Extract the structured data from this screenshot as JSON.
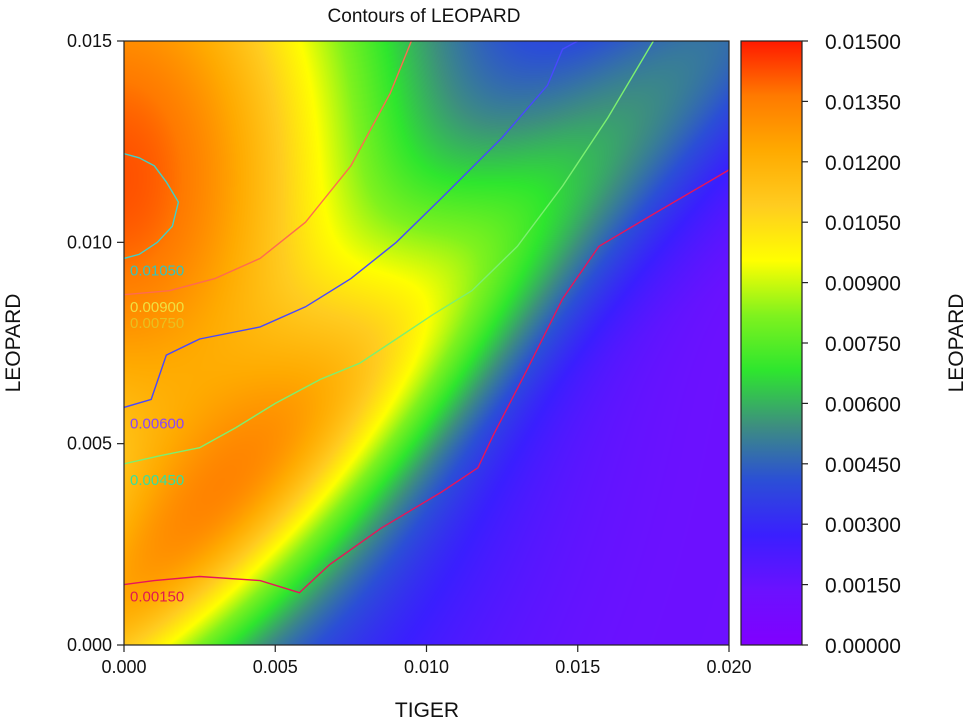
{
  "chart_data": {
    "type": "heatmap",
    "title": "Contours of LEOPARD",
    "xlabel": "TIGER",
    "ylabel": "LEOPARD",
    "colorbar_label": "LEOPARD",
    "xlim": [
      0,
      0.02
    ],
    "ylim": [
      0,
      0.015
    ],
    "x_ticks": [
      "0.000",
      "0.005",
      "0.010",
      "0.015",
      "0.020"
    ],
    "y_ticks": [
      "0.000",
      "0.005",
      "0.010",
      "0.015"
    ],
    "x_tick_values": [
      0,
      0.005,
      0.01,
      0.015,
      0.02
    ],
    "y_tick_values": [
      0,
      0.005,
      0.01,
      0.015
    ],
    "colorbar_range": [
      0,
      0.015
    ],
    "colorbar_ticks": [
      "0.00000",
      "0.00150",
      "0.00300",
      "0.00450",
      "0.00600",
      "0.00750",
      "0.00900",
      "0.01050",
      "0.01200",
      "0.01350",
      "0.01500"
    ],
    "colorbar_tick_values": [
      0,
      0.0015,
      0.003,
      0.0045,
      0.006,
      0.0075,
      0.009,
      0.0105,
      0.012,
      0.0135,
      0.015
    ],
    "colormap": [
      "#8000ff",
      "#6b11ff",
      "#3a1fff",
      "#2b4fd6",
      "#3d8f7f",
      "#2ee62e",
      "#7ff21e",
      "#ffff00",
      "#ffcc20",
      "#ffaa00",
      "#ff7a00",
      "#ff1a00"
    ],
    "grid": false,
    "contours": [
      {
        "level": "0.01050",
        "color": "#40d0c8",
        "label_color": "#33c5bd",
        "points": [
          [
            0,
            0.0122
          ],
          [
            0.0005,
            0.0121
          ],
          [
            0.001,
            0.0119
          ],
          [
            0.0014,
            0.0115
          ],
          [
            0.0018,
            0.011
          ],
          [
            0.0016,
            0.0104
          ],
          [
            0.0011,
            0.01
          ],
          [
            0.0005,
            0.0097
          ],
          [
            0,
            0.0096
          ]
        ]
      },
      {
        "level": "0.00900",
        "color": "#ff6a50",
        "label_color": "#f0e040",
        "points": [
          [
            0,
            0.0087
          ],
          [
            0.0015,
            0.0088
          ],
          [
            0.003,
            0.0091
          ],
          [
            0.0045,
            0.0096
          ],
          [
            0.006,
            0.0105
          ],
          [
            0.0075,
            0.0119
          ],
          [
            0.0088,
            0.0137
          ],
          [
            0.0095,
            0.015
          ]
        ]
      },
      {
        "level": "0.00750",
        "color": "#4848ff",
        "label_color": "#e8c020",
        "points": [
          [
            0,
            0.0059
          ],
          [
            0.0009,
            0.0061
          ],
          [
            0.0014,
            0.0072
          ],
          [
            0.0025,
            0.0076
          ],
          [
            0.0045,
            0.0079
          ],
          [
            0.006,
            0.0084
          ],
          [
            0.0075,
            0.0091
          ],
          [
            0.009,
            0.01
          ],
          [
            0.0105,
            0.0111
          ],
          [
            0.0125,
            0.0126
          ],
          [
            0.014,
            0.0139
          ],
          [
            0.0145,
            0.0148
          ],
          [
            0.015,
            0.015
          ]
        ]
      },
      {
        "level": "0.00600",
        "color": "#7cf070",
        "label_color": "#8844ff",
        "points": [
          [
            0,
            0.0045
          ],
          [
            0.0012,
            0.0047
          ],
          [
            0.0025,
            0.0049
          ],
          [
            0.0037,
            0.0054
          ],
          [
            0.005,
            0.006
          ],
          [
            0.0065,
            0.0066
          ],
          [
            0.0078,
            0.007
          ],
          [
            0.009,
            0.0076
          ],
          [
            0.0102,
            0.0082
          ],
          [
            0.0115,
            0.0088
          ],
          [
            0.013,
            0.0099
          ],
          [
            0.0145,
            0.0114
          ],
          [
            0.016,
            0.0131
          ],
          [
            0.0175,
            0.015
          ]
        ]
      },
      {
        "level": "0.00450",
        "color": "#40d0c8",
        "label_color": "#33e0a0",
        "points": []
      },
      {
        "level": "0.00150",
        "color": "#e8145a",
        "label_color": "#e01850",
        "points": [
          [
            0,
            0.0015
          ],
          [
            0.001,
            0.0016
          ],
          [
            0.0025,
            0.0017
          ],
          [
            0.0045,
            0.0016
          ],
          [
            0.0058,
            0.0013
          ],
          [
            0.0068,
            0.002
          ],
          [
            0.0085,
            0.0029
          ],
          [
            0.0105,
            0.0038
          ],
          [
            0.0117,
            0.0044
          ],
          [
            0.0122,
            0.0052
          ],
          [
            0.0133,
            0.0068
          ],
          [
            0.0145,
            0.0086
          ],
          [
            0.0157,
            0.0099
          ],
          [
            0.0175,
            0.0107
          ],
          [
            0.02,
            0.0118
          ]
        ]
      }
    ]
  }
}
